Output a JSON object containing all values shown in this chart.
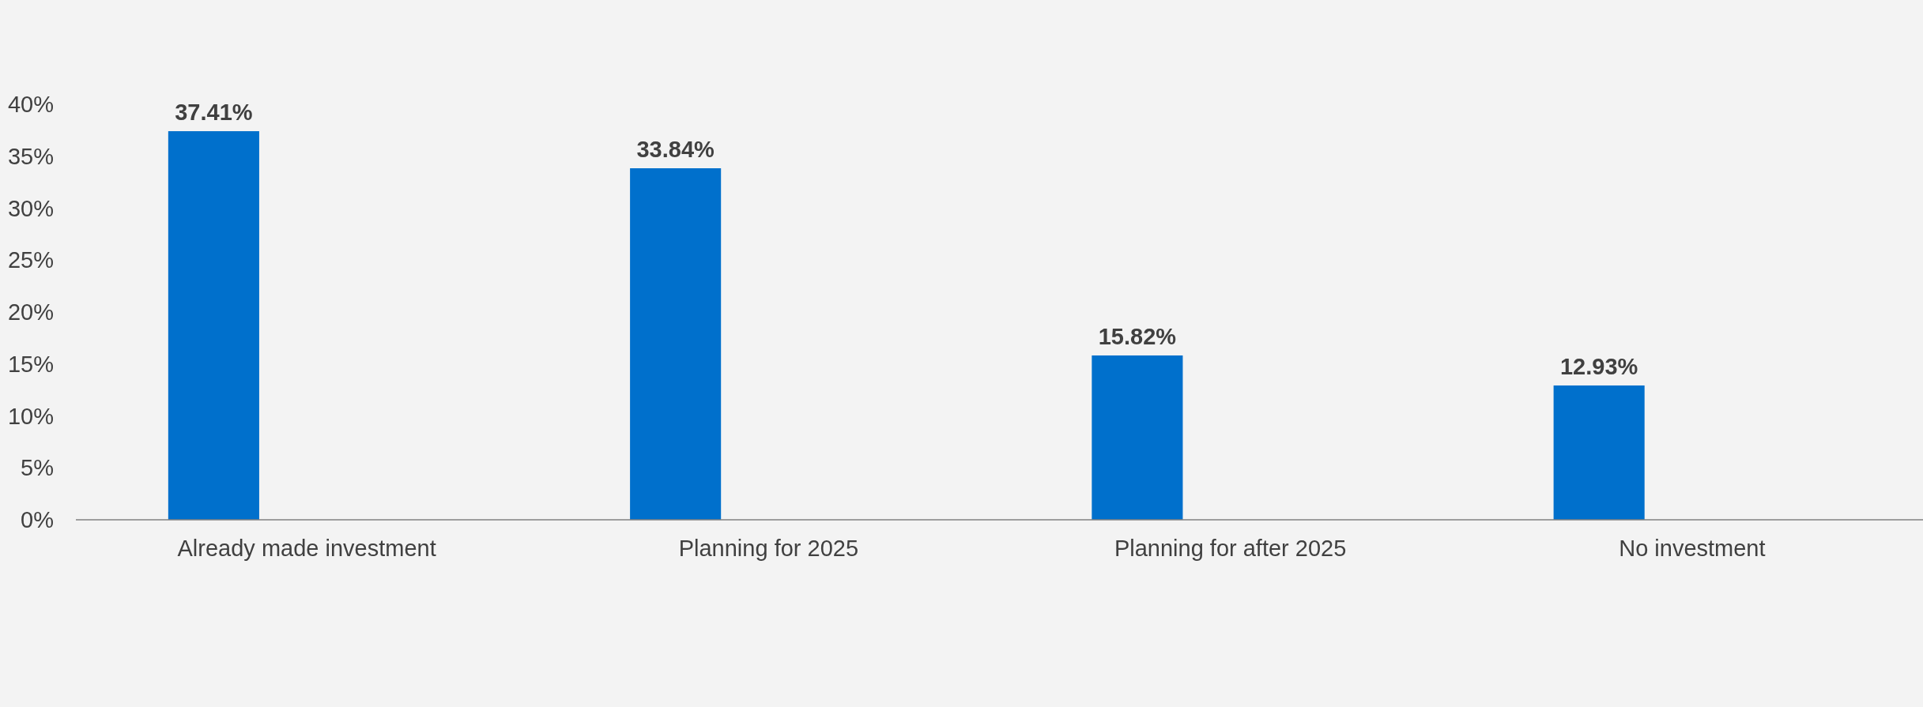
{
  "chart_data": {
    "type": "bar",
    "categories": [
      "Already made investment",
      "Planning for 2025",
      "Planning for after 2025",
      "No investment"
    ],
    "values": [
      37.41,
      33.84,
      15.82,
      12.93
    ],
    "color": "#0070cc",
    "value_labels": [
      "37.41%",
      "33.84%",
      "15.82%",
      "12.93%"
    ],
    "ylim": [
      0,
      40
    ],
    "yticks": [
      {
        "value": 0,
        "label": "0%"
      },
      {
        "value": 5,
        "label": "5%"
      },
      {
        "value": 10,
        "label": "10%"
      },
      {
        "value": 15,
        "label": "15%"
      },
      {
        "value": 20,
        "label": "20%"
      },
      {
        "value": 25,
        "label": "25%"
      },
      {
        "value": 30,
        "label": "30%"
      },
      {
        "value": 35,
        "label": "35%"
      },
      {
        "value": 40,
        "label": "40%"
      }
    ],
    "grid": false
  }
}
